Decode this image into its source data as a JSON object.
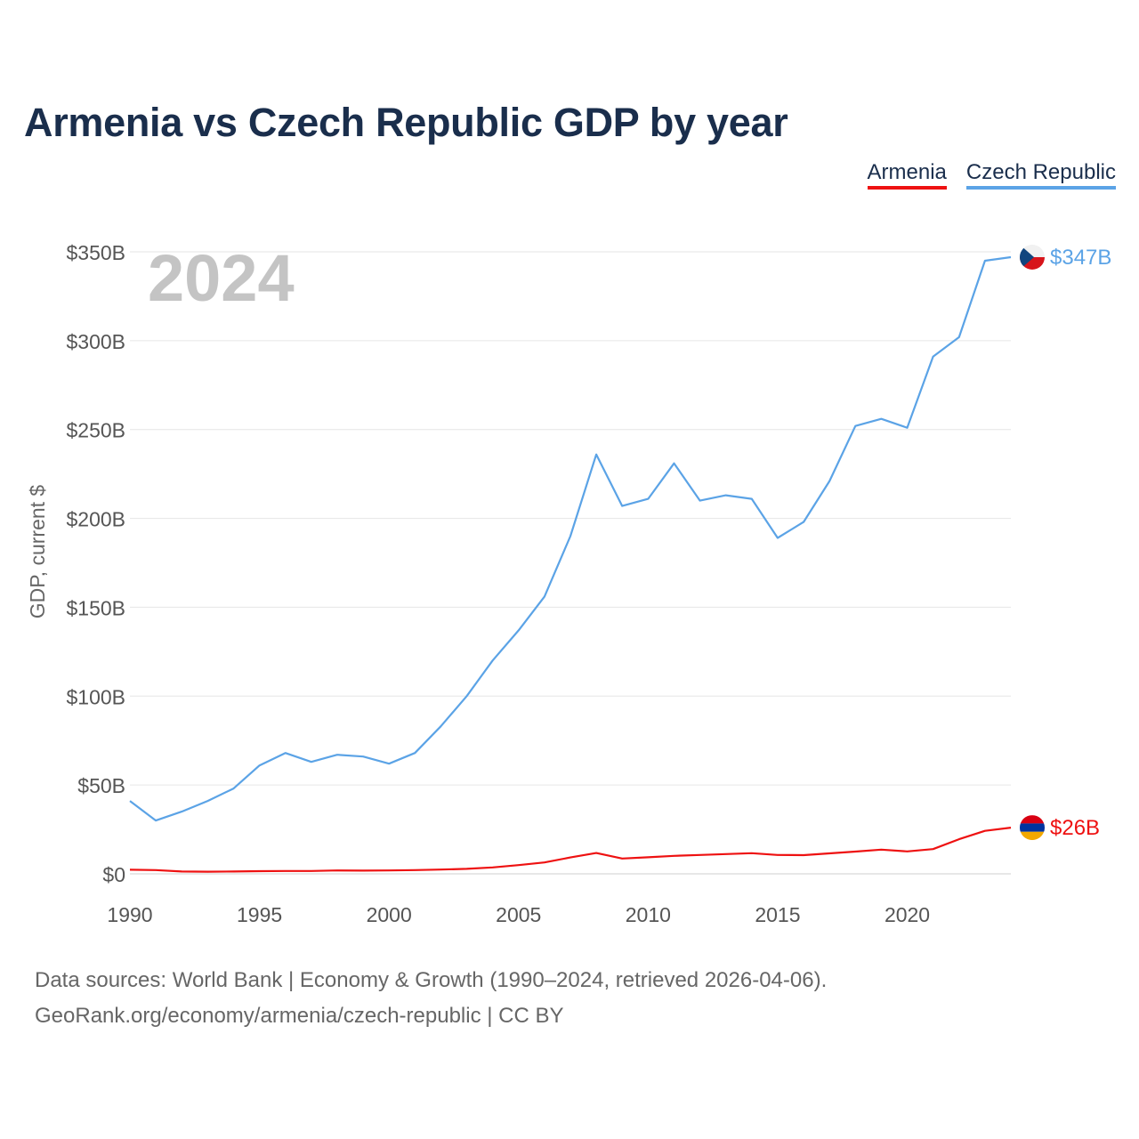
{
  "chart_data": {
    "type": "line",
    "title": "Armenia vs Czech Republic GDP by year",
    "ylabel": "GDP, current $",
    "xlabel": "",
    "year_label": "2024",
    "xlim": [
      1990,
      2024
    ],
    "ylim": [
      0,
      350
    ],
    "x_ticks": [
      1990,
      1995,
      2000,
      2005,
      2010,
      2015,
      2020
    ],
    "x_tick_labels": [
      "1990",
      "1995",
      "2000",
      "2005",
      "2010",
      "2015",
      "2020"
    ],
    "y_ticks": [
      0,
      50,
      100,
      150,
      200,
      250,
      300,
      350
    ],
    "y_tick_labels": [
      "$0",
      "$50B",
      "$100B",
      "$150B",
      "$200B",
      "$250B",
      "$300B",
      "$350B"
    ],
    "grid": true,
    "legend_position": "top-right",
    "x": [
      1990,
      1991,
      1992,
      1993,
      1994,
      1995,
      1996,
      1997,
      1998,
      1999,
      2000,
      2001,
      2002,
      2003,
      2004,
      2005,
      2006,
      2007,
      2008,
      2009,
      2010,
      2011,
      2012,
      2013,
      2014,
      2015,
      2016,
      2017,
      2018,
      2019,
      2020,
      2021,
      2022,
      2023,
      2024
    ],
    "series": [
      {
        "name": "Armenia",
        "color": "#ee1111",
        "end_label": "$26B",
        "flag": "armenia-flag",
        "values": [
          2.3,
          2.1,
          1.3,
          1.2,
          1.3,
          1.5,
          1.6,
          1.6,
          1.9,
          1.8,
          1.9,
          2.1,
          2.4,
          2.8,
          3.6,
          4.9,
          6.4,
          9.2,
          11.7,
          8.6,
          9.3,
          10.1,
          10.6,
          11.1,
          11.6,
          10.6,
          10.5,
          11.5,
          12.5,
          13.6,
          12.6,
          13.9,
          19.5,
          24.2,
          26.0
        ]
      },
      {
        "name": "Czech Republic",
        "color": "#5ba3e6",
        "end_label": "$347B",
        "flag": "czech-flag",
        "values": [
          41,
          30,
          35,
          41,
          48,
          61,
          68,
          63,
          67,
          66,
          62,
          68,
          83,
          100,
          120,
          137,
          156,
          190,
          236,
          207,
          211,
          231,
          210,
          213,
          211,
          189,
          198,
          221,
          252,
          256,
          251,
          291,
          302,
          345,
          347
        ]
      }
    ]
  },
  "source": {
    "line1": "Data sources: World Bank | Economy & Growth (1990–2024, retrieved 2026-04-06).",
    "line2": "GeoRank.org/economy/armenia/czech-republic | CC BY"
  }
}
